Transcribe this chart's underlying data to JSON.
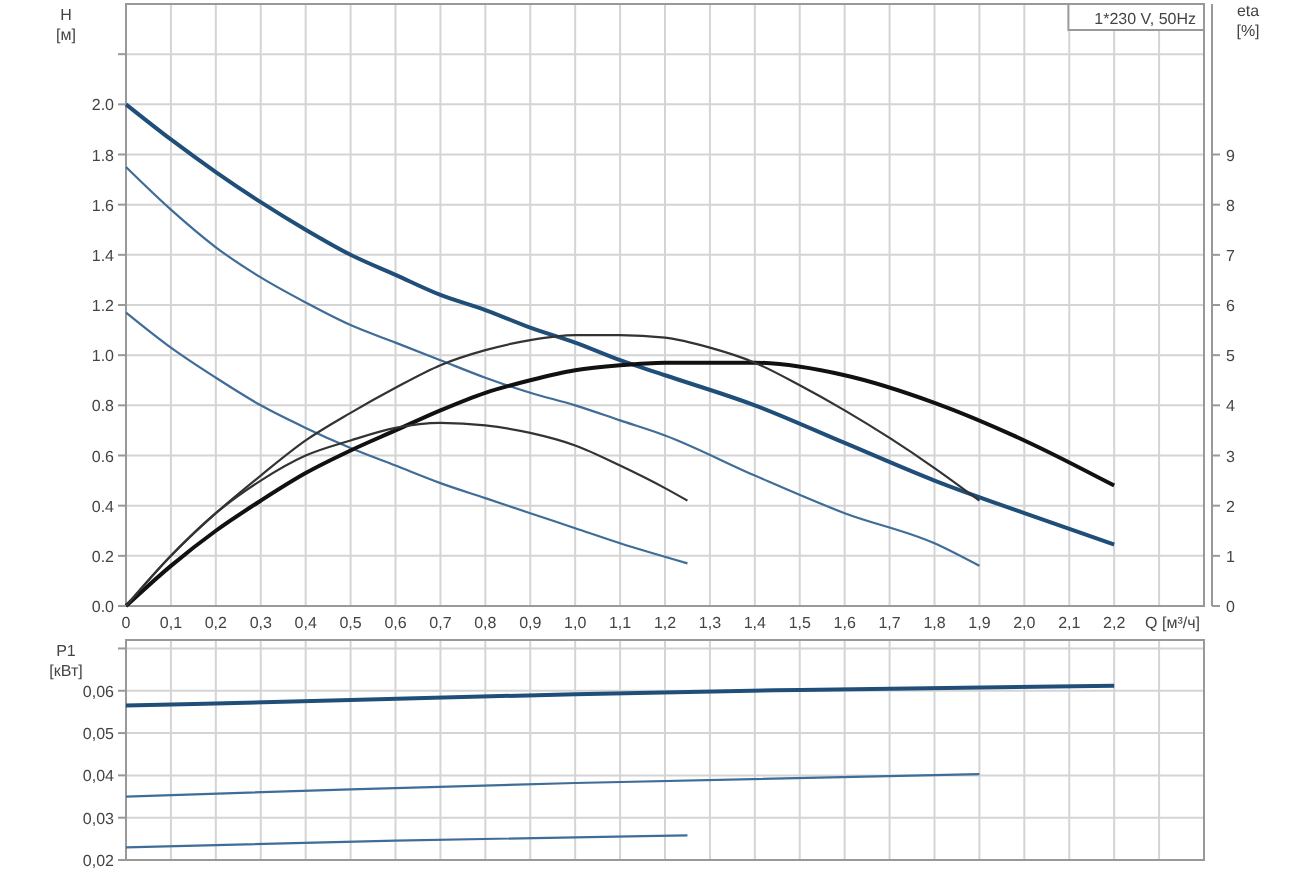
{
  "chart_data": [
    {
      "type": "line",
      "xlabel": "Q [м³/ч]",
      "ylabel": "H [м]",
      "y2label": "eta [%]",
      "annotations": [
        "1*230 V, 50Hz"
      ],
      "xlim": [
        0,
        2.4
      ],
      "xticks": [
        {
          "value": 0,
          "label": "0"
        },
        {
          "value": 0.1,
          "label": "0,1"
        },
        {
          "value": 0.2,
          "label": "0,2"
        },
        {
          "value": 0.3,
          "label": "0,3"
        },
        {
          "value": 0.4,
          "label": "0,4"
        },
        {
          "value": 0.5,
          "label": "0,5"
        },
        {
          "value": 0.6,
          "label": "0,6"
        },
        {
          "value": 0.7,
          "label": "0,7"
        },
        {
          "value": 0.8,
          "label": "0,8"
        },
        {
          "value": 0.9,
          "label": "0,9"
        },
        {
          "value": 1.0,
          "label": "1,0"
        },
        {
          "value": 1.1,
          "label": "1,1"
        },
        {
          "value": 1.2,
          "label": "1,2"
        },
        {
          "value": 1.3,
          "label": "1,3"
        },
        {
          "value": 1.4,
          "label": "1,4"
        },
        {
          "value": 1.5,
          "label": "1,5"
        },
        {
          "value": 1.6,
          "label": "1,6"
        },
        {
          "value": 1.7,
          "label": "1,7"
        },
        {
          "value": 1.8,
          "label": "1,8"
        },
        {
          "value": 1.9,
          "label": "1,9"
        },
        {
          "value": 2.0,
          "label": "2,0"
        },
        {
          "value": 2.1,
          "label": "2,1"
        },
        {
          "value": 2.2,
          "label": "2,2"
        },
        {
          "value": 2.3,
          "label": null
        }
      ],
      "ylim": [
        0,
        2.4
      ],
      "yticks": [
        {
          "value": 0,
          "label": "0.0"
        },
        {
          "value": 0.2,
          "label": "0.2"
        },
        {
          "value": 0.4,
          "label": "0.4"
        },
        {
          "value": 0.6,
          "label": "0.6"
        },
        {
          "value": 0.8,
          "label": "0.8"
        },
        {
          "value": 1.0,
          "label": "1.0"
        },
        {
          "value": 1.2,
          "label": "1.2"
        },
        {
          "value": 1.4,
          "label": "1.4"
        },
        {
          "value": 1.6,
          "label": "1.6"
        },
        {
          "value": 1.8,
          "label": "1.8"
        },
        {
          "value": 2.0,
          "label": "2.0"
        },
        {
          "value": 2.2,
          "label": null
        }
      ],
      "y2lim": [
        0,
        12
      ],
      "y2ticks": [
        0,
        1,
        2,
        3,
        4,
        5,
        6,
        7,
        8,
        9
      ],
      "grid": true,
      "line_style": "solid",
      "marker": "none",
      "series": [
        {
          "color": "#1f4e79",
          "x": [
            0,
            0.1,
            0.2,
            0.3,
            0.4,
            0.5,
            0.6,
            0.7,
            0.8,
            0.9,
            1.0,
            1.1,
            1.2,
            1.4,
            1.6,
            1.8,
            2.0,
            2.2
          ],
          "values": [
            2.0,
            1.86,
            1.73,
            1.61,
            1.5,
            1.4,
            1.32,
            1.24,
            1.18,
            1.11,
            1.05,
            0.98,
            0.92,
            0.8,
            0.65,
            0.5,
            0.37,
            0.245
          ]
        },
        {
          "color": "#3f6d98",
          "x": [
            0,
            0.1,
            0.2,
            0.3,
            0.4,
            0.5,
            0.6,
            0.7,
            0.8,
            0.9,
            1.0,
            1.1,
            1.2,
            1.4,
            1.6,
            1.8,
            1.9
          ],
          "values": [
            1.75,
            1.58,
            1.43,
            1.31,
            1.21,
            1.12,
            1.05,
            0.98,
            0.91,
            0.85,
            0.8,
            0.74,
            0.68,
            0.52,
            0.37,
            0.25,
            0.16
          ]
        },
        {
          "color": "#3f6d98",
          "x": [
            0,
            0.1,
            0.2,
            0.3,
            0.4,
            0.5,
            0.6,
            0.7,
            0.8,
            0.9,
            1.0,
            1.1,
            1.25
          ],
          "values": [
            1.17,
            1.03,
            0.91,
            0.8,
            0.71,
            0.63,
            0.56,
            0.49,
            0.43,
            0.37,
            0.31,
            0.25,
            0.17
          ]
        },
        {
          "color": "#111111",
          "axis": "y2",
          "x": [
            0,
            0.1,
            0.2,
            0.3,
            0.4,
            0.5,
            0.6,
            0.7,
            0.8,
            0.9,
            1.0,
            1.1,
            1.2,
            1.4,
            1.6,
            1.8,
            2.0,
            2.2
          ],
          "values": [
            0,
            0.8,
            1.5,
            2.1,
            2.65,
            3.1,
            3.5,
            3.9,
            4.25,
            4.5,
            4.7,
            4.8,
            4.85,
            4.85,
            4.6,
            4.05,
            3.3,
            2.4
          ]
        },
        {
          "color": "#333333",
          "axis": "y2",
          "x": [
            0,
            0.1,
            0.2,
            0.3,
            0.4,
            0.5,
            0.6,
            0.7,
            0.8,
            0.9,
            1.0,
            1.1,
            1.2,
            1.3,
            1.4,
            1.5,
            1.6,
            1.7,
            1.8,
            1.9
          ],
          "values": [
            0,
            1.0,
            1.85,
            2.6,
            3.3,
            3.85,
            4.35,
            4.8,
            5.1,
            5.3,
            5.4,
            5.4,
            5.35,
            5.15,
            4.85,
            4.4,
            3.9,
            3.35,
            2.75,
            2.1
          ]
        },
        {
          "color": "#333333",
          "axis": "y2",
          "x": [
            0,
            0.1,
            0.2,
            0.3,
            0.4,
            0.5,
            0.6,
            0.7,
            0.8,
            0.9,
            1.0,
            1.1,
            1.2,
            1.25
          ],
          "values": [
            0,
            1.0,
            1.85,
            2.5,
            3.0,
            3.3,
            3.55,
            3.65,
            3.6,
            3.45,
            3.2,
            2.8,
            2.35,
            2.1
          ]
        }
      ]
    },
    {
      "type": "line",
      "ylabel": "P1 [кВт]",
      "tick_labels": "y",
      "grid": true,
      "line_style": "solid",
      "marker": "none",
      "xlim": [
        0,
        2.4
      ],
      "xticks": [
        0,
        0.1,
        0.2,
        0.3,
        0.4,
        0.5,
        0.6,
        0.7,
        0.8,
        0.9,
        1.0,
        1.1,
        1.2,
        1.3,
        1.4,
        1.5,
        1.6,
        1.7,
        1.8,
        1.9,
        2.0,
        2.1,
        2.2,
        2.3
      ],
      "ylim": [
        0.02,
        0.072
      ],
      "yticks": [
        {
          "value": 0.02,
          "label": "0,02"
        },
        {
          "value": 0.03,
          "label": "0,03"
        },
        {
          "value": 0.04,
          "label": "0,04"
        },
        {
          "value": 0.05,
          "label": "0,05"
        },
        {
          "value": 0.06,
          "label": "0,06"
        },
        {
          "value": 0.07,
          "label": null
        }
      ],
      "series": [
        {
          "color": "#1f4e79",
          "x": [
            0,
            0.5,
            1.0,
            1.5,
            2.2
          ],
          "values": [
            0.0565,
            0.0578,
            0.0592,
            0.0602,
            0.0612
          ]
        },
        {
          "color": "#3f6d98",
          "x": [
            0,
            0.5,
            1.0,
            1.9
          ],
          "values": [
            0.035,
            0.0367,
            0.0382,
            0.0403
          ]
        },
        {
          "color": "#3f6d98",
          "x": [
            0,
            0.6,
            1.25
          ],
          "values": [
            0.023,
            0.0246,
            0.0258
          ]
        }
      ]
    }
  ]
}
